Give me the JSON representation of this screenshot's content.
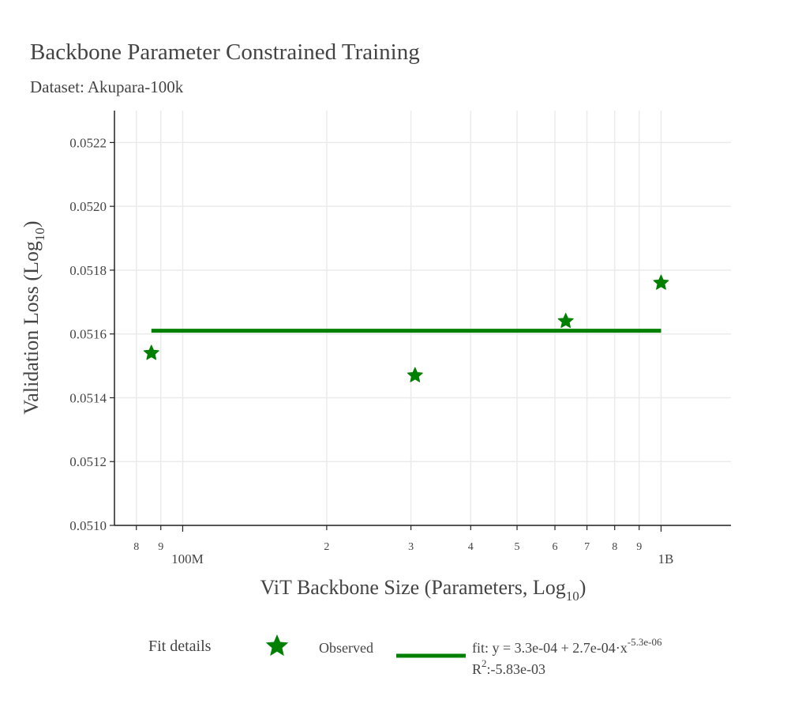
{
  "title": "Backbone Parameter Constrained Training",
  "subtitle": "Dataset: Akupara-100k",
  "colors": {
    "series": "#008000",
    "grid": "#ebebeb",
    "axis": "#222222"
  },
  "chart_data": {
    "type": "scatter",
    "x_scale": "log",
    "xlabel": "ViT Backbone Size (Parameters, Log",
    "xlabel_sub": "10",
    "xlabel_end": ")",
    "ylabel": "Validation Loss (Log",
    "ylabel_sub": "10",
    "ylabel_end": ")",
    "xlim": [
      72000000,
      1400000000
    ],
    "ylim": [
      0.051,
      0.0523
    ],
    "grid": true,
    "x_major_ticks": [
      {
        "value": 100000000,
        "label": "100M"
      },
      {
        "value": 1000000000,
        "label": "1B"
      }
    ],
    "x_minor_ticks": [
      {
        "value": 80000000,
        "label": "8"
      },
      {
        "value": 90000000,
        "label": "9"
      },
      {
        "value": 200000000,
        "label": "2"
      },
      {
        "value": 300000000,
        "label": "3"
      },
      {
        "value": 400000000,
        "label": "4"
      },
      {
        "value": 500000000,
        "label": "5"
      },
      {
        "value": 600000000,
        "label": "6"
      },
      {
        "value": 700000000,
        "label": "7"
      },
      {
        "value": 800000000,
        "label": "8"
      },
      {
        "value": 900000000,
        "label": "9"
      }
    ],
    "y_ticks": [
      {
        "value": 0.051,
        "label": "0.0510"
      },
      {
        "value": 0.0512,
        "label": "0.0512"
      },
      {
        "value": 0.0514,
        "label": "0.0514"
      },
      {
        "value": 0.0516,
        "label": "0.0516"
      },
      {
        "value": 0.0518,
        "label": "0.0518"
      },
      {
        "value": 0.052,
        "label": "0.0520"
      },
      {
        "value": 0.0522,
        "label": "0.0522"
      }
    ],
    "series": [
      {
        "name": "Observed",
        "type": "scatter",
        "marker": "star",
        "points": [
          {
            "x": 86000000,
            "y": 0.05154
          },
          {
            "x": 306000000,
            "y": 0.05147
          },
          {
            "x": 632000000,
            "y": 0.05164
          },
          {
            "x": 1000000000,
            "y": 0.05176
          }
        ]
      },
      {
        "name": "fit",
        "type": "line",
        "points": [
          {
            "x": 86000000,
            "y": 0.05161
          },
          {
            "x": 1000000000,
            "y": 0.05161
          }
        ]
      }
    ],
    "legend": {
      "title": "Fit details",
      "observed_label": "Observed",
      "fit_line1_main": "fit: y = 3.3e-04 + 2.7e-04·x",
      "fit_line1_sup": "-5.3e-06",
      "fit_line2_main": "R",
      "fit_line2_sup": "2",
      "fit_line2_rest": ":-5.83e-03",
      "placement": "bottom"
    }
  }
}
